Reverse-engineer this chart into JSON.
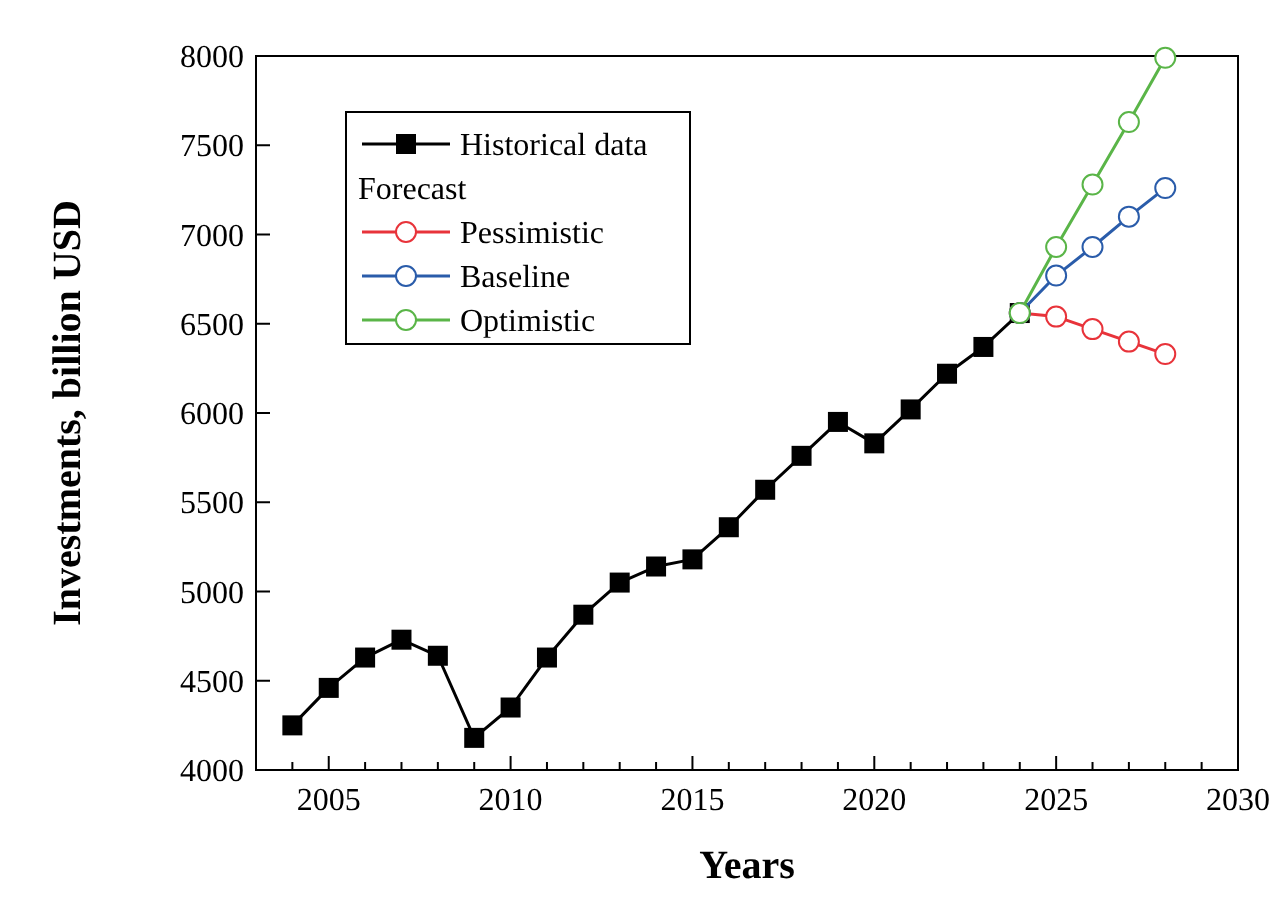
{
  "chart_data": {
    "type": "line",
    "xlabel": "Years",
    "ylabel": "Investments, billion USD",
    "legend_title": "Forecast",
    "legend": "top left",
    "grid": false,
    "xlim": [
      2003,
      2030
    ],
    "xticks": [
      2005,
      2010,
      2015,
      2020,
      2025,
      2030
    ],
    "ylim": [
      4000,
      8000
    ],
    "yticks": [
      4000,
      4500,
      5000,
      5500,
      6000,
      6500,
      7000,
      7500,
      8000
    ],
    "series": [
      {
        "name": "Historical data",
        "color": "#000000",
        "marker": "square",
        "x": [
          2004,
          2005,
          2006,
          2007,
          2008,
          2009,
          2010,
          2011,
          2012,
          2013,
          2014,
          2015,
          2016,
          2017,
          2018,
          2019,
          2020,
          2021,
          2022,
          2023,
          2024
        ],
        "values": [
          4250,
          4460,
          4630,
          4730,
          4640,
          4180,
          4350,
          4630,
          4870,
          5050,
          5140,
          5180,
          5360,
          5570,
          5760,
          5950,
          5830,
          6020,
          6220,
          6370,
          6560
        ]
      },
      {
        "name": "Pessimistic",
        "color": "#e8333a",
        "marker": "circle",
        "x": [
          2024,
          2025,
          2026,
          2027,
          2028
        ],
        "values": [
          6560,
          6540,
          6470,
          6400,
          6330
        ]
      },
      {
        "name": "Baseline",
        "color": "#2a5caa",
        "marker": "circle",
        "x": [
          2024,
          2025,
          2026,
          2027,
          2028
        ],
        "values": [
          6560,
          6770,
          6930,
          7100,
          7260
        ]
      },
      {
        "name": "Optimistic",
        "color": "#5ab548",
        "marker": "circle",
        "x": [
          2024,
          2025,
          2026,
          2027,
          2028
        ],
        "values": [
          6560,
          6930,
          7280,
          7630,
          7990
        ]
      }
    ]
  }
}
